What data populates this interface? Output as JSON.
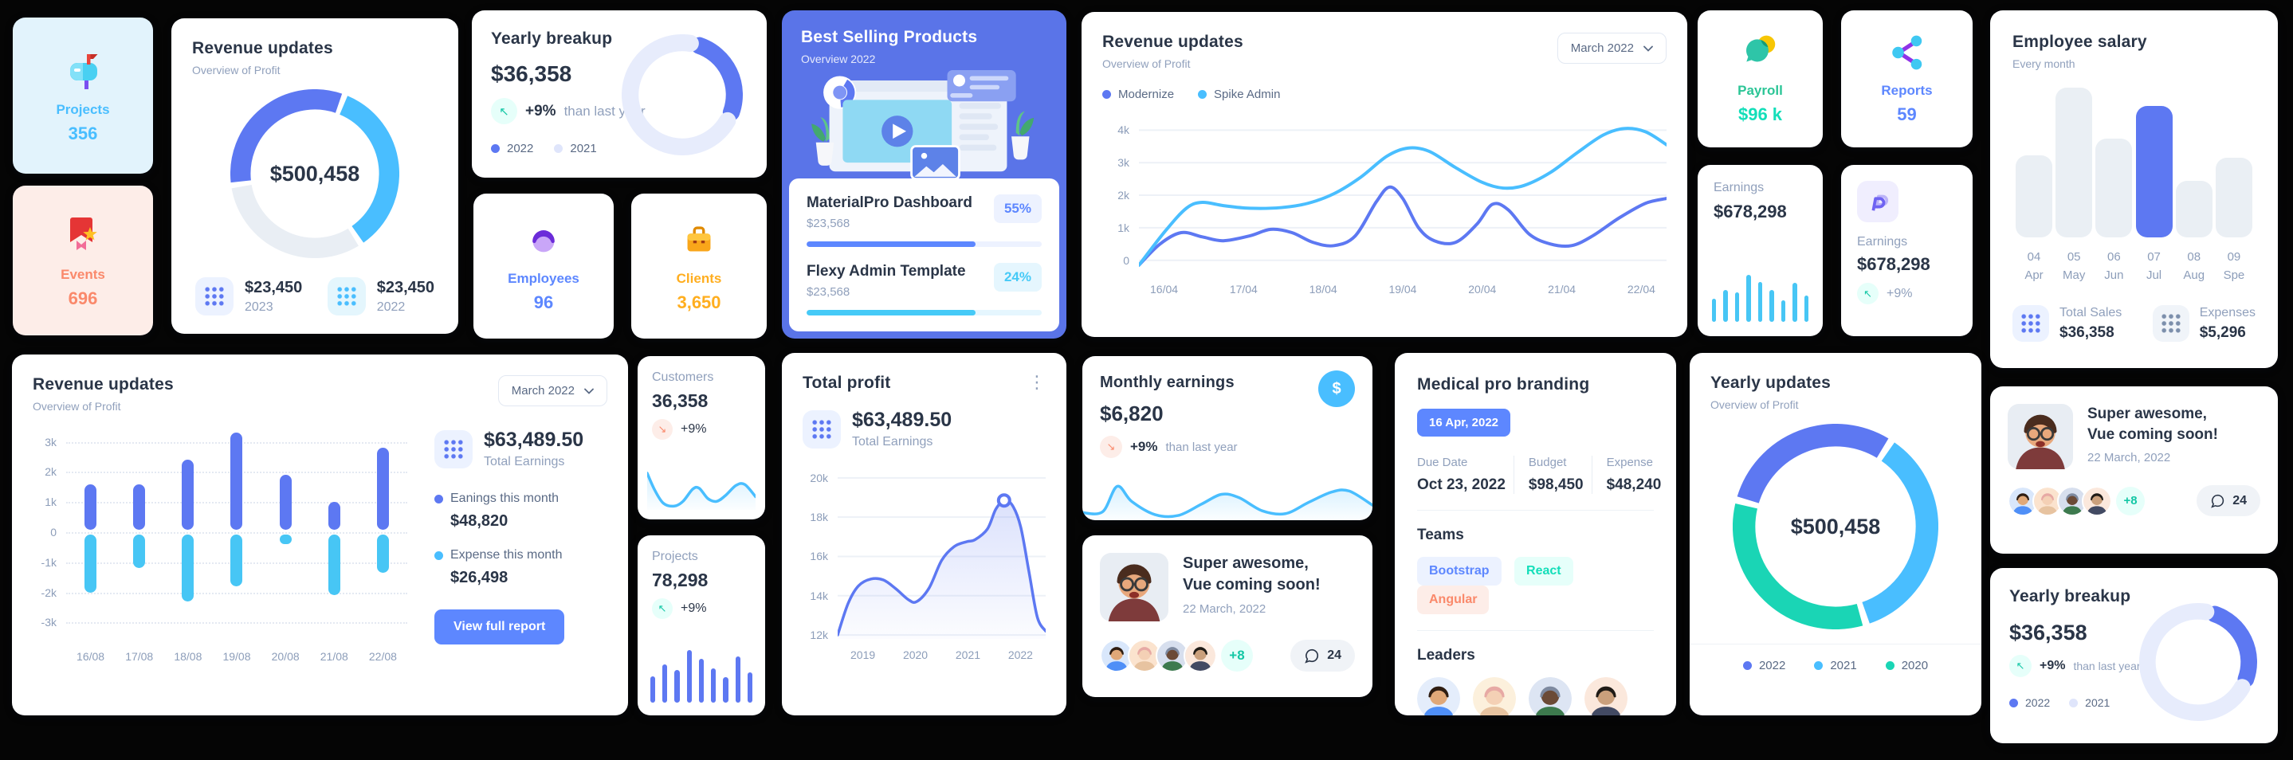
{
  "palette": {
    "primary": "#5D87FF",
    "chart_primary": "#5D78F2",
    "secondary": "#49BEFF",
    "success": "#13DEB9",
    "error": "#FA896B",
    "warning": "#FFAE1F",
    "dark_text": "#2A3547",
    "muted_text": "#90A0BC",
    "best_selling_bg": "#5A74E8"
  },
  "icons": {
    "projects_tile": "mailbox-icon",
    "events_tile": "bookmark-star-icon",
    "employees_tile": "person-icon",
    "clients_tile": "briefcase-icon",
    "payroll_tile": "chat-coin-icon",
    "reports_tile": "share-nodes-icon",
    "earnings_paypal": "paypal-icon",
    "monthly_earnings": "dollar-circle-icon",
    "stat_blocks": "grid-dots-icon",
    "comments": "speech-bubble-icon",
    "period_select": "chevron-down-icon",
    "card_menu": "kebab-menu-icon",
    "delta_up": "arrow-up-left-icon",
    "delta_down": "arrow-down-right-icon"
  },
  "tiles": {
    "projects": {
      "label": "Projects",
      "value": "356"
    },
    "events": {
      "label": "Events",
      "value": "696"
    },
    "employees": {
      "label": "Employees",
      "value": "96"
    },
    "clients": {
      "label": "Clients",
      "value": "3,650"
    },
    "payroll": {
      "label": "Payroll",
      "value": "$96 k"
    },
    "reports": {
      "label": "Reports",
      "value": "59"
    }
  },
  "cards": {
    "revenue_donut": {
      "title": "Revenue updates",
      "subtitle": "Overview of Profit",
      "center": "$500,458",
      "stats": [
        {
          "value": "$23,450",
          "year": "2023"
        },
        {
          "value": "$23,450",
          "year": "2022"
        }
      ]
    },
    "yearly_breakup": {
      "title": "Yearly breakup",
      "amount": "$36,358",
      "delta": "+9%",
      "delta_note": "than last year"
    },
    "best_selling": {
      "title": "Best Selling Products",
      "subtitle": "Overview 2022",
      "products": [
        {
          "name": "MaterialPro Dashboard",
          "price": "$23,568",
          "badge": "55%"
        },
        {
          "name": "Flexy Admin Template",
          "price": "$23,568",
          "badge": "24%"
        }
      ]
    },
    "revenue_line": {
      "title": "Revenue updates",
      "subtitle": "Overview of Profit",
      "period": "March 2022"
    },
    "earnings_bars": {
      "label": "Earnings",
      "value": "$678,298"
    },
    "earnings_paypal": {
      "label": "Earnings",
      "value": "$678,298",
      "delta": "+9%"
    },
    "employee_salary": {
      "title": "Employee salary",
      "subtitle": "Every month",
      "total_sales_label": "Total Sales",
      "total_sales_value": "$36,358",
      "expenses_label": "Expenses",
      "expenses_value": "$5,296"
    },
    "revenue_bars": {
      "title": "Revenue updates",
      "subtitle": "Overview of Profit",
      "period": "March 2022",
      "total": "$63,489.50",
      "total_label": "Total Earnings",
      "earnings_label": "Eanings this month",
      "earnings_value": "$48,820",
      "expense_label": "Expense this month",
      "expense_value": "$26,498",
      "button": "View full report"
    },
    "customers": {
      "label": "Customers",
      "value": "36,358",
      "delta": "+9%"
    },
    "projects_spark": {
      "label": "Projects",
      "value": "78,298",
      "delta": "+9%"
    },
    "total_profit": {
      "title": "Total profit",
      "amount": "$63,489.50",
      "amount_label": "Total Earnings"
    },
    "monthly_earnings": {
      "title": "Monthly earnings",
      "amount": "$6,820",
      "delta": "+9%",
      "delta_note": "than last year"
    },
    "super_awesome": {
      "title_line1": "Super awesome,",
      "title_line2": "Vue coming soon!",
      "date": "22 March, 2022",
      "extra_count": "+8",
      "comments": "24"
    },
    "medical": {
      "title": "Medical pro branding",
      "date_badge": "16 Apr, 2022",
      "due_label": "Due Date",
      "due_value": "Oct 23, 2022",
      "budget_label": "Budget",
      "budget_value": "$98,450",
      "expense_label": "Expense",
      "expense_value": "$48,240",
      "teams_label": "Teams",
      "teams": [
        "Bootstrap",
        "React",
        "Angular"
      ],
      "leaders_label": "Leaders"
    },
    "yearly_updates": {
      "title": "Yearly updates",
      "subtitle": "Overview of Profit",
      "center": "$500,458"
    }
  },
  "chart_data": [
    {
      "id": "revenue-donut",
      "type": "donut",
      "title": "Revenue updates donut",
      "center_label": "$500,458",
      "start": 262,
      "pad": 4,
      "linecap": "butt",
      "thickness": 12,
      "segments": [
        {
          "label": "2023",
          "value": 33,
          "color": "#5D78F2"
        },
        {
          "label": "2022",
          "value": 35,
          "color": "#49BEFF"
        },
        {
          "label": "remainder",
          "value": 32,
          "color": "#E9EEF4"
        }
      ]
    },
    {
      "id": "yearly-breakup-donut",
      "type": "donut",
      "title": "Yearly breakup donut",
      "start": 14,
      "pad": 10,
      "linecap": "round",
      "thickness": 14,
      "segments": [
        {
          "label": "2022",
          "value": 28,
          "color": "#5D78F2"
        },
        {
          "label": "2021",
          "value": 72,
          "color": "#E7ECFC"
        }
      ]
    },
    {
      "id": "yearly-breakup-donut-2",
      "type": "donut",
      "title": "Yearly breakup donut",
      "start": 14,
      "pad": 10,
      "linecap": "round",
      "thickness": 14,
      "segments": [
        {
          "label": "2022",
          "value": 28,
          "color": "#5D78F2"
        },
        {
          "label": "2021",
          "value": 72,
          "color": "#E7ECFC"
        }
      ]
    },
    {
      "id": "yearly-updates-donut",
      "type": "donut",
      "title": "Yearly updates donut",
      "center_label": "$500,458",
      "start": 285,
      "pad": 4,
      "linecap": "butt",
      "thickness": 11,
      "segments": [
        {
          "label": "2022",
          "value": 30,
          "color": "#5D78F2"
        },
        {
          "label": "2021",
          "value": 36,
          "color": "#49BEFF"
        },
        {
          "label": "2020",
          "value": 34,
          "color": "#1AD5B5"
        }
      ]
    },
    {
      "id": "revenue-line",
      "type": "line",
      "title": "Revenue updates (Modernize vs Spike Admin)",
      "x_labels": [
        "16/04",
        "17/04",
        "18/04",
        "19/04",
        "20/04",
        "21/04",
        "22/04"
      ],
      "y_labels": [
        "4k",
        "3k",
        "2k",
        "1k",
        "0"
      ],
      "y_ticks": [
        4,
        3,
        2,
        1,
        0
      ],
      "ylim": [
        -0.35,
        4.45
      ],
      "grid": "solid",
      "series": [
        {
          "name": "Modernize",
          "color": "#5D78F2",
          "width": 4,
          "points": [
            [
              0,
              -0.15
            ],
            [
              4,
              0.5
            ],
            [
              8,
              0.85
            ],
            [
              12,
              0.72
            ],
            [
              16,
              0.6
            ],
            [
              21,
              0.75
            ],
            [
              25,
              0.95
            ],
            [
              29,
              0.85
            ],
            [
              33,
              0.55
            ],
            [
              37,
              0.45
            ],
            [
              41,
              0.75
            ],
            [
              45,
              1.8
            ],
            [
              47.5,
              2.25
            ],
            [
              50,
              1.9
            ],
            [
              53,
              1.0
            ],
            [
              56,
              0.6
            ],
            [
              60,
              0.55
            ],
            [
              64,
              1.1
            ],
            [
              67,
              1.72
            ],
            [
              70,
              1.55
            ],
            [
              74,
              0.8
            ],
            [
              78,
              0.5
            ],
            [
              82,
              0.45
            ],
            [
              86,
              0.75
            ],
            [
              91,
              1.3
            ],
            [
              96,
              1.75
            ],
            [
              100,
              1.9
            ]
          ]
        },
        {
          "name": "Spike Admin",
          "color": "#49BEFF",
          "width": 4,
          "points": [
            [
              0,
              -0.15
            ],
            [
              5,
              0.9
            ],
            [
              9,
              1.6
            ],
            [
              12,
              1.78
            ],
            [
              16,
              1.68
            ],
            [
              21,
              1.6
            ],
            [
              27,
              1.62
            ],
            [
              32,
              1.75
            ],
            [
              37,
              2.05
            ],
            [
              42,
              2.55
            ],
            [
              47,
              3.2
            ],
            [
              51,
              3.45
            ],
            [
              55,
              3.35
            ],
            [
              60,
              2.85
            ],
            [
              65,
              2.4
            ],
            [
              69,
              2.22
            ],
            [
              73,
              2.3
            ],
            [
              78,
              2.7
            ],
            [
              83,
              3.3
            ],
            [
              88,
              3.85
            ],
            [
              92,
              4.05
            ],
            [
              96,
              3.95
            ],
            [
              100,
              3.55
            ]
          ]
        }
      ]
    },
    {
      "id": "revenue-dualbars",
      "type": "dualbars",
      "title": "Revenue updates earnings vs expense",
      "x_labels": [
        "16/08",
        "17/08",
        "18/08",
        "19/08",
        "20/08",
        "21/08",
        "22/08"
      ],
      "y_labels": [
        "3k",
        "2k",
        "1k",
        "0",
        "-1k",
        "-2k",
        "-3k"
      ],
      "y_ticks": [
        3,
        2,
        1,
        0,
        -1,
        -2,
        -3
      ],
      "ylim": [
        -3.6,
        3.6
      ],
      "up_color": "#5D78F2",
      "down_color": "#47C6F5",
      "up": [
        1.6,
        1.6,
        2.4,
        3.3,
        1.9,
        1.0,
        2.8
      ],
      "down": [
        -2.0,
        -1.2,
        -2.3,
        -1.8,
        -0.4,
        -2.1,
        -1.35
      ]
    },
    {
      "id": "employee-salary-bars",
      "type": "rbars",
      "title": "Employee salary by month",
      "x_labels": [
        [
          "04",
          "Apr"
        ],
        [
          "05",
          "May"
        ],
        [
          "06",
          "Jun"
        ],
        [
          "07",
          "Jul"
        ],
        [
          "08",
          "Aug"
        ],
        [
          "09",
          "Spe"
        ]
      ],
      "values": [
        55,
        100,
        66,
        88,
        38,
        53
      ],
      "highlight_index": 3,
      "bar_color": "#EAEFF4",
      "highlight_color": "#5D78F2"
    },
    {
      "id": "total-profit-area",
      "type": "line",
      "title": "Total profit",
      "x_labels": [
        "2019",
        "2020",
        "2021",
        "2022"
      ],
      "y_labels": [
        "20k",
        "18k",
        "16k",
        "14k",
        "12k"
      ],
      "y_ticks": [
        20,
        18,
        16,
        14,
        12
      ],
      "ylim": [
        11.8,
        20.4
      ],
      "grid": "solid",
      "marker": [
        80,
        18.85
      ],
      "series": [
        {
          "name": "Profit",
          "color": "#5D78F2",
          "width": 3.5,
          "fill": true,
          "points": [
            [
              0,
              12.0
            ],
            [
              5,
              13.6
            ],
            [
              10,
              14.5
            ],
            [
              16,
              14.85
            ],
            [
              22,
              14.8
            ],
            [
              28,
              14.35
            ],
            [
              34,
              13.8
            ],
            [
              38,
              13.7
            ],
            [
              44,
              14.4
            ],
            [
              50,
              15.8
            ],
            [
              56,
              16.5
            ],
            [
              62,
              16.75
            ],
            [
              66,
              16.85
            ],
            [
              72,
              17.4
            ],
            [
              76,
              18.4
            ],
            [
              80,
              18.85
            ],
            [
              84,
              18.6
            ],
            [
              88,
              17.5
            ],
            [
              92,
              15.2
            ],
            [
              96,
              12.9
            ],
            [
              100,
              12.2
            ]
          ]
        }
      ]
    },
    {
      "id": "customers-spark",
      "type": "line",
      "title": "Customers trend",
      "ylim": [
        0,
        105
      ],
      "series": [
        {
          "name": "Customers",
          "color": "#49BEFF",
          "width": 3.5,
          "fill": true,
          "points": [
            [
              0,
              78
            ],
            [
              7,
              42
            ],
            [
              15,
              14
            ],
            [
              25,
              8
            ],
            [
              33,
              18
            ],
            [
              42,
              44
            ],
            [
              48,
              46
            ],
            [
              56,
              24
            ],
            [
              64,
              18
            ],
            [
              72,
              30
            ],
            [
              82,
              52
            ],
            [
              90,
              54
            ],
            [
              100,
              28
            ]
          ]
        }
      ]
    },
    {
      "id": "monthly-spark",
      "type": "line",
      "title": "Monthly earnings trend",
      "ylim": [
        0,
        105
      ],
      "series": [
        {
          "name": "Earnings",
          "color": "#49BEFF",
          "width": 3.5,
          "fill": true,
          "points": [
            [
              0,
              16
            ],
            [
              7,
              18
            ],
            [
              12,
              72
            ],
            [
              17,
              40
            ],
            [
              25,
              12
            ],
            [
              33,
              10
            ],
            [
              41,
              34
            ],
            [
              48,
              55
            ],
            [
              54,
              48
            ],
            [
              62,
              20
            ],
            [
              70,
              14
            ],
            [
              78,
              38
            ],
            [
              86,
              60
            ],
            [
              92,
              62
            ],
            [
              100,
              32
            ]
          ]
        }
      ]
    },
    {
      "id": "earnings-sparkbars",
      "type": "sparkbars",
      "title": "Earnings bars",
      "color": "#47C6F5",
      "values": [
        45,
        62,
        58,
        92,
        78,
        62,
        42,
        76,
        52
      ]
    },
    {
      "id": "projects-sparkbars",
      "type": "sparkbars",
      "title": "Projects bars",
      "color": "#5D78F2",
      "values": [
        50,
        72,
        62,
        100,
        83,
        65,
        48,
        88,
        58
      ]
    },
    {
      "id": "best-selling-progress",
      "type": "progress",
      "title": "Best selling progress",
      "items": [
        {
          "name": "MaterialPro Dashboard",
          "badge_pct": "55%",
          "fill_pct": 72,
          "color": "#5D87FF",
          "track": "#EDF2FF"
        },
        {
          "name": "Flexy Admin Template",
          "badge_pct": "24%",
          "fill_pct": 72,
          "color": "#46CAF7",
          "track": "#E5F6FE"
        }
      ]
    }
  ]
}
